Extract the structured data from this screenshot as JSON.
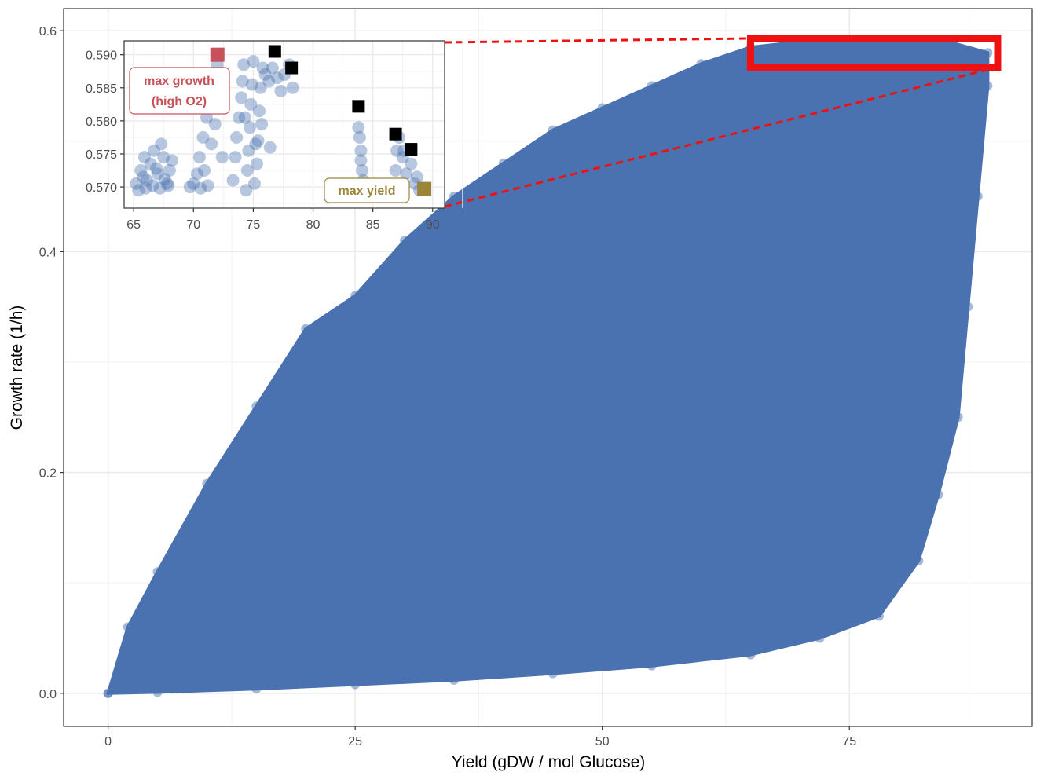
{
  "chart_data": [
    {
      "type": "scatter",
      "xlabel": "Yield (gDW / mol Glucose)",
      "ylabel": "Growth rate (1/h)",
      "xlim": [
        -4.5,
        93.5
      ],
      "ylim": [
        -0.03,
        0.62
      ],
      "x_ticks": [
        0,
        25,
        50,
        75
      ],
      "y_ticks": [
        0.0,
        0.2,
        0.4,
        0.6
      ],
      "x_tick_labels": [
        "0",
        "25",
        "50",
        "75"
      ],
      "y_tick_labels": [
        "0.0",
        "0.2",
        "0.4",
        "0.6"
      ],
      "grid": true,
      "point_color": "#4a72b0",
      "envelope_upper": [
        [
          0,
          0
        ],
        [
          2,
          0.06
        ],
        [
          5,
          0.11
        ],
        [
          10,
          0.19
        ],
        [
          15,
          0.26
        ],
        [
          20,
          0.33
        ],
        [
          25,
          0.36
        ],
        [
          30,
          0.41
        ],
        [
          35,
          0.45
        ],
        [
          40,
          0.48
        ],
        [
          45,
          0.51
        ],
        [
          50,
          0.53
        ],
        [
          55,
          0.55
        ],
        [
          60,
          0.57
        ],
        [
          65,
          0.585
        ],
        [
          70,
          0.59
        ],
        [
          75,
          0.59
        ],
        [
          80,
          0.59
        ],
        [
          85,
          0.59
        ],
        [
          89,
          0.58
        ]
      ],
      "envelope_lower": [
        [
          89,
          0.55
        ],
        [
          88,
          0.45
        ],
        [
          87,
          0.35
        ],
        [
          86,
          0.25
        ],
        [
          84,
          0.18
        ],
        [
          82,
          0.12
        ],
        [
          78,
          0.07
        ],
        [
          72,
          0.05
        ],
        [
          65,
          0.035
        ],
        [
          55,
          0.025
        ],
        [
          45,
          0.018
        ],
        [
          35,
          0.012
        ],
        [
          25,
          0.008
        ],
        [
          15,
          0.004
        ],
        [
          5,
          0.001
        ],
        [
          0,
          0
        ]
      ],
      "zoom_box": {
        "x": [
          65,
          90
        ],
        "y": [
          0.567,
          0.593
        ],
        "color": "#ee1111"
      }
    },
    {
      "type": "scatter",
      "xlim": [
        64.2,
        91.0
      ],
      "ylim": [
        0.5668,
        0.5921
      ],
      "x_ticks": [
        65,
        70,
        75,
        80,
        85,
        90
      ],
      "y_ticks": [
        0.57,
        0.575,
        0.58,
        0.585,
        0.59
      ],
      "x_tick_labels": [
        "65",
        "70",
        "75",
        "80",
        "85",
        "90"
      ],
      "y_tick_labels": [
        "0.570",
        "0.575",
        "0.580",
        "0.585",
        "0.590"
      ],
      "grid": true,
      "points": [
        [
          65.2,
          0.5705
        ],
        [
          65.6,
          0.5725
        ],
        [
          65.9,
          0.5745
        ],
        [
          66.1,
          0.571
        ],
        [
          66.4,
          0.5735
        ],
        [
          66.7,
          0.5755
        ],
        [
          67.0,
          0.572
        ],
        [
          67.3,
          0.5765
        ],
        [
          67.5,
          0.5745
        ],
        [
          67.8,
          0.5705
        ],
        [
          68.0,
          0.5725
        ],
        [
          68.2,
          0.574
        ],
        [
          65.4,
          0.5695
        ],
        [
          66.0,
          0.5698
        ],
        [
          66.6,
          0.5702
        ],
        [
          67.2,
          0.5698
        ],
        [
          67.9,
          0.5702
        ],
        [
          65.8,
          0.5715
        ],
        [
          66.9,
          0.5728
        ],
        [
          67.6,
          0.5712
        ],
        [
          69.7,
          0.57
        ],
        [
          70.0,
          0.5705
        ],
        [
          70.3,
          0.572
        ],
        [
          70.5,
          0.5745
        ],
        [
          70.8,
          0.5775
        ],
        [
          71.1,
          0.5805
        ],
        [
          71.4,
          0.5835
        ],
        [
          71.7,
          0.586
        ],
        [
          72.0,
          0.5885
        ],
        [
          71.2,
          0.5702
        ],
        [
          70.6,
          0.5698
        ],
        [
          71.5,
          0.5765
        ],
        [
          72.2,
          0.5835
        ],
        [
          70.9,
          0.5725
        ],
        [
          71.8,
          0.5795
        ],
        [
          72.4,
          0.5745
        ],
        [
          73.3,
          0.571
        ],
        [
          73.5,
          0.5745
        ],
        [
          73.6,
          0.5775
        ],
        [
          73.8,
          0.5805
        ],
        [
          74.0,
          0.5835
        ],
        [
          74.1,
          0.586
        ],
        [
          74.2,
          0.5885
        ],
        [
          74.4,
          0.5695
        ],
        [
          74.5,
          0.5725
        ],
        [
          74.6,
          0.5755
        ],
        [
          74.7,
          0.579
        ],
        [
          74.8,
          0.5825
        ],
        [
          74.9,
          0.5855
        ],
        [
          75.0,
          0.589
        ],
        [
          75.1,
          0.5705
        ],
        [
          75.3,
          0.5735
        ],
        [
          75.4,
          0.577
        ],
        [
          75.5,
          0.5815
        ],
        [
          75.6,
          0.585
        ],
        [
          75.8,
          0.588
        ],
        [
          76.0,
          0.587
        ],
        [
          76.3,
          0.586
        ],
        [
          76.6,
          0.588
        ],
        [
          77.0,
          0.5865
        ],
        [
          77.3,
          0.5845
        ],
        [
          77.6,
          0.587
        ],
        [
          78.0,
          0.5885
        ],
        [
          78.3,
          0.585
        ],
        [
          75.2,
          0.5765
        ],
        [
          75.7,
          0.5795
        ],
        [
          76.4,
          0.576
        ],
        [
          74.3,
          0.5805
        ],
        [
          83.8,
          0.579
        ],
        [
          83.9,
          0.5775
        ],
        [
          84.0,
          0.5755
        ],
        [
          84.0,
          0.574
        ],
        [
          84.1,
          0.5725
        ],
        [
          84.2,
          0.571
        ],
        [
          83.9,
          0.5695
        ],
        [
          87.0,
          0.5755
        ],
        [
          87.2,
          0.5775
        ],
        [
          87.5,
          0.5745
        ],
        [
          87.8,
          0.572
        ],
        [
          88.2,
          0.5735
        ],
        [
          88.5,
          0.5705
        ],
        [
          88.7,
          0.5715
        ],
        [
          88.9,
          0.5695
        ],
        [
          87.6,
          0.5755
        ],
        [
          86.9,
          0.5725
        ],
        [
          84.2,
          0.5702
        ]
      ],
      "black_squares": [
        [
          76.8,
          0.5905
        ],
        [
          78.2,
          0.588
        ],
        [
          83.8,
          0.5822
        ],
        [
          86.9,
          0.578
        ],
        [
          88.2,
          0.5757
        ]
      ],
      "max_growth_point": [
        72.0,
        0.59
      ],
      "max_yield_point": [
        89.3,
        0.5697
      ],
      "annotations": {
        "max_growth_line1": "max growth",
        "max_growth_line2": "(high O2)",
        "max_yield": "max yield",
        "max_growth_color": "#c8515a",
        "max_yield_color": "#9b8539"
      }
    }
  ]
}
